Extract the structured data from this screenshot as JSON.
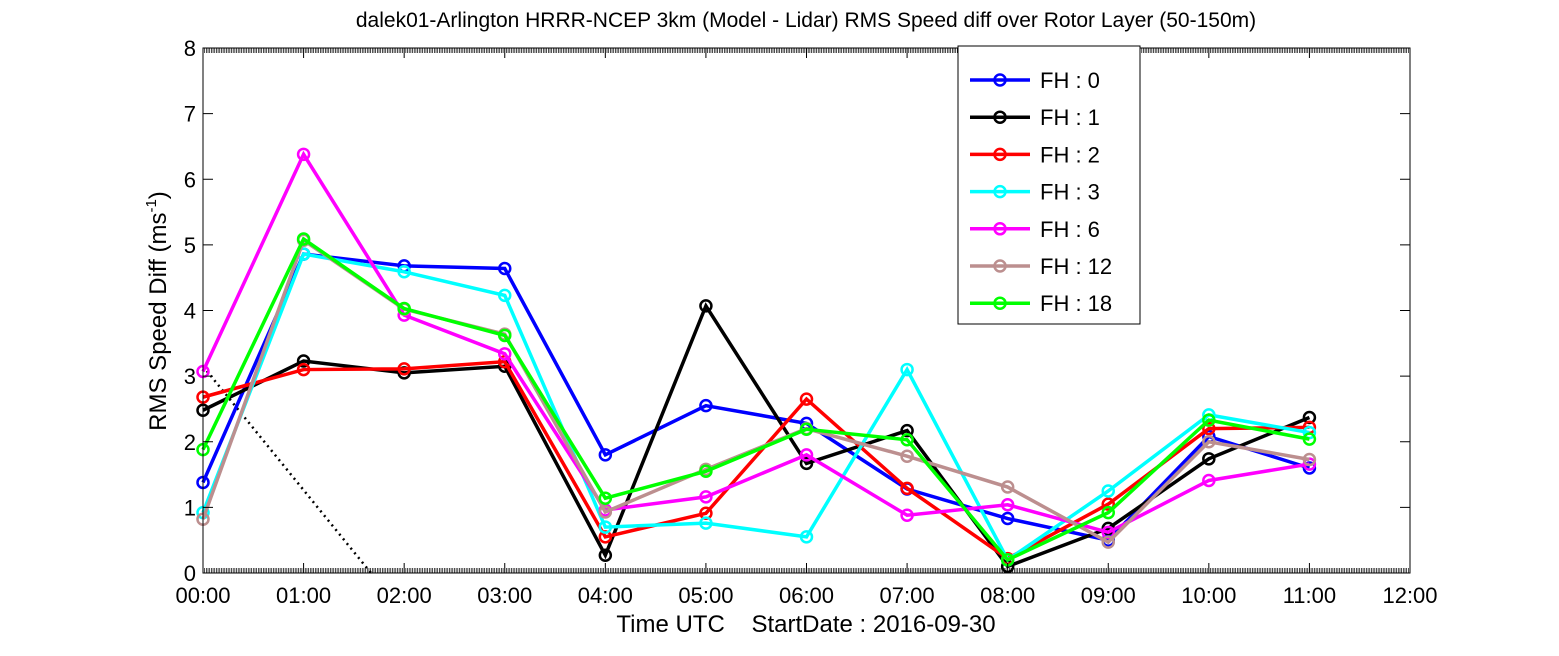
{
  "chart_data": {
    "type": "line",
    "title": "dalek01-Arlington HRRR-NCEP 3km (Model - Lidar) RMS Speed diff over Rotor Layer (50-150m)",
    "xlabel": "Time UTC    StartDate : 2016-09-30",
    "ylabel_main": "RMS Speed Diff (ms",
    "ylabel_sup": "-1",
    "ylabel_close": ")",
    "x_ticks": [
      "00:00",
      "01:00",
      "02:00",
      "03:00",
      "04:00",
      "05:00",
      "06:00",
      "07:00",
      "08:00",
      "09:00",
      "10:00",
      "11:00",
      "12:00"
    ],
    "y_ticks": [
      "0",
      "1",
      "2",
      "3",
      "4",
      "5",
      "6",
      "7",
      "8"
    ],
    "xlim": [
      0,
      12
    ],
    "ylim": [
      0,
      8
    ],
    "grid": false,
    "legend_position": "top-right",
    "series": [
      {
        "name": "FH : 0",
        "color": "#0000ff",
        "values": [
          1.38,
          4.86,
          4.68,
          4.64,
          1.8,
          2.55,
          2.28,
          1.28,
          0.83,
          0.5,
          2.08,
          1.6
        ]
      },
      {
        "name": "FH : 1",
        "color": "#000000",
        "values": [
          2.48,
          3.23,
          3.05,
          3.15,
          0.27,
          4.07,
          1.67,
          2.17,
          0.1,
          0.68,
          1.74,
          2.37
        ]
      },
      {
        "name": "FH : 2",
        "color": "#ff0000",
        "values": [
          2.68,
          3.1,
          3.11,
          3.22,
          0.55,
          0.91,
          2.65,
          1.29,
          0.22,
          1.05,
          2.2,
          2.22
        ]
      },
      {
        "name": "FH : 3",
        "color": "#00ffff",
        "values": [
          0.92,
          4.86,
          4.59,
          4.23,
          0.7,
          0.76,
          0.55,
          3.1,
          0.2,
          1.25,
          2.41,
          2.14
        ]
      },
      {
        "name": "FH : 6",
        "color": "#ff00ff",
        "values": [
          3.07,
          6.38,
          3.93,
          3.34,
          0.96,
          1.16,
          1.8,
          0.88,
          1.04,
          0.62,
          1.41,
          1.66
        ]
      },
      {
        "name": "FH : 12",
        "color": "#bc8f8f",
        "values": [
          0.82,
          5.07,
          4.02,
          3.64,
          0.93,
          1.58,
          2.2,
          1.78,
          1.31,
          0.47,
          2.0,
          1.73
        ]
      },
      {
        "name": "FH : 18",
        "color": "#00ff00",
        "values": [
          1.88,
          5.09,
          4.03,
          3.62,
          1.14,
          1.55,
          2.19,
          2.03,
          0.2,
          0.92,
          2.33,
          2.04
        ]
      }
    ],
    "reference_line": {
      "style": "dotted",
      "color": "#000000",
      "x": [
        0,
        1.67
      ],
      "y": [
        3.15,
        0
      ]
    }
  }
}
